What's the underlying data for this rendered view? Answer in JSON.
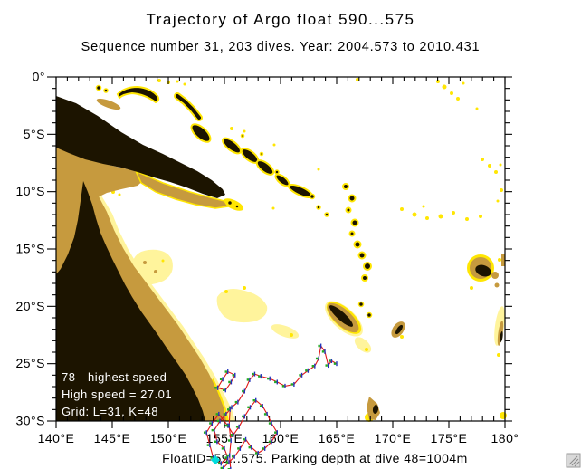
{
  "title": "Trajectory of Argo float 590...575",
  "subtitle": "Sequence number 31, 203 dives. Year: 2004.573 to 2010.431",
  "caption": "FloatID=59...575. Parking depth at dive 48=1004m",
  "legend": {
    "lines": [
      "78—highest speed",
      "High speed = 27.01",
      "Grid: L=31, K=48"
    ],
    "text_color": "#ffffff"
  },
  "icons": {
    "resize_grip": "diagonal-hatch-resize-handle"
  },
  "chart_data": {
    "type": "map-trajectory",
    "title": "Trajectory of Argo float 590...575",
    "subtitle": "Sequence number 31, 203 dives. Year: 2004.573 to 2010.431",
    "grid": "off",
    "x_axis": {
      "min": 140,
      "max": 180,
      "minor_step": 1,
      "major_step": 5,
      "labels": [
        "140°E",
        "145°E",
        "150°E",
        "155°E",
        "160°E",
        "165°E",
        "170°E",
        "175°E",
        "180°"
      ]
    },
    "y_axis": {
      "min": 0,
      "max": 30,
      "minor_step": 1,
      "major_step": 5,
      "direction": "south",
      "labels": [
        "0°",
        "5°S",
        "10°S",
        "15°S",
        "20°S",
        "25°S",
        "30°S"
      ]
    },
    "colors": {
      "ocean": "#ffffff",
      "land": "#1c1400",
      "shelf_tan": "#c69a3e",
      "reef_yellow": "#ffe603",
      "shallow_pale": "#fff49c",
      "trajectory_red": "#e01818",
      "marker_blue": "#2233bb",
      "marker_green": "#22aa22",
      "start_marker_cyan": "#00dddd"
    },
    "trajectory": {
      "units": "lon_degE, lat_degS",
      "main_path": [
        [
          165.0,
          25.0
        ],
        [
          164.55,
          24.75
        ],
        [
          164.25,
          25.15
        ],
        [
          163.95,
          23.95
        ],
        [
          163.6,
          23.45
        ],
        [
          163.4,
          24.55
        ],
        [
          163.05,
          25.2
        ],
        [
          162.45,
          25.6
        ],
        [
          161.9,
          26.0
        ],
        [
          161.2,
          26.8
        ],
        [
          160.4,
          26.95
        ],
        [
          159.7,
          26.6
        ],
        [
          159.05,
          26.3
        ],
        [
          158.25,
          26.1
        ],
        [
          157.7,
          25.9
        ],
        [
          157.25,
          26.4
        ],
        [
          156.8,
          27.4
        ],
        [
          156.2,
          28.35
        ],
        [
          155.65,
          28.8
        ],
        [
          155.15,
          29.4
        ],
        [
          154.6,
          30.0
        ],
        [
          154.1,
          30.8
        ],
        [
          154.35,
          31.8
        ],
        [
          155.0,
          32.4
        ],
        [
          155.3,
          33.2
        ],
        [
          154.7,
          33.7
        ],
        [
          154.0,
          33.2
        ],
        [
          153.7,
          32.1
        ],
        [
          153.4,
          31.0
        ],
        [
          153.9,
          30.2
        ],
        [
          154.5,
          29.4
        ],
        [
          155.3,
          30.4
        ],
        [
          155.8,
          31.2
        ],
        [
          156.3,
          30.5
        ],
        [
          156.8,
          29.6
        ],
        [
          157.3,
          28.8
        ],
        [
          157.8,
          28.2
        ],
        [
          158.4,
          28.7
        ],
        [
          158.8,
          29.4
        ],
        [
          159.2,
          30.2
        ],
        [
          159.7,
          31.0
        ],
        [
          159.2,
          31.8
        ],
        [
          158.6,
          32.4
        ],
        [
          158.0,
          32.8
        ],
        [
          157.4,
          32.3
        ],
        [
          156.9,
          31.6
        ],
        [
          156.4,
          32.4
        ],
        [
          155.9,
          33.1
        ],
        [
          155.4,
          33.6
        ],
        [
          154.9,
          34.1
        ]
      ],
      "spur_path": [
        [
          154.4,
          27.1
        ],
        [
          154.85,
          26.35
        ],
        [
          155.3,
          25.7
        ],
        [
          155.95,
          26.0
        ],
        [
          155.6,
          26.6
        ],
        [
          155.1,
          27.3
        ],
        [
          154.4,
          27.1
        ]
      ],
      "strand_path": [
        [
          155.5,
          29.0
        ],
        [
          155.42,
          30.4
        ],
        [
          155.58,
          31.7
        ],
        [
          155.46,
          33.0
        ],
        [
          155.55,
          34.2
        ]
      ],
      "start_marker": [
        154.2,
        33.4
      ]
    }
  }
}
